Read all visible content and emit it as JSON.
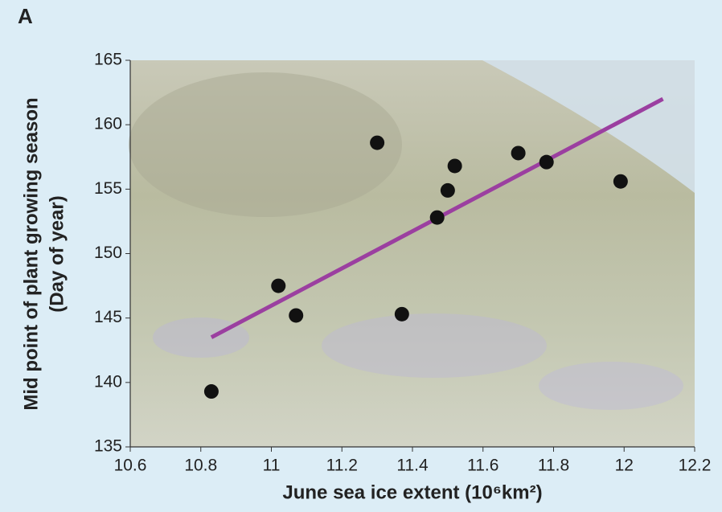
{
  "chart_data": {
    "type": "scatter",
    "panel_label": "A",
    "xlabel": "June sea ice extent (10⁶km²)",
    "ylabel": [
      "Mid point of plant growing season",
      "(Day of year)"
    ],
    "x": [
      10.83,
      11.02,
      11.07,
      11.3,
      11.37,
      11.47,
      11.5,
      11.52,
      11.7,
      11.78,
      11.99
    ],
    "series": [
      {
        "color": "#111111",
        "values": [
          139.3,
          147.5,
          145.2,
          158.6,
          145.3,
          152.8,
          154.9,
          156.8,
          157.8,
          157.1,
          155.6
        ]
      }
    ],
    "fit_line": {
      "color": "#9b3fa0",
      "x": [
        10.83,
        12.11
      ],
      "values": [
        143.5,
        162.0
      ]
    },
    "xlim": [
      10.6,
      12.2
    ],
    "xticks": [
      10.6,
      10.8,
      11,
      11.2,
      11.4,
      11.6,
      11.8,
      12,
      12.2
    ],
    "ylim": [
      135,
      165
    ],
    "yticks": [
      135,
      140,
      145,
      150,
      155,
      160,
      165
    ]
  }
}
